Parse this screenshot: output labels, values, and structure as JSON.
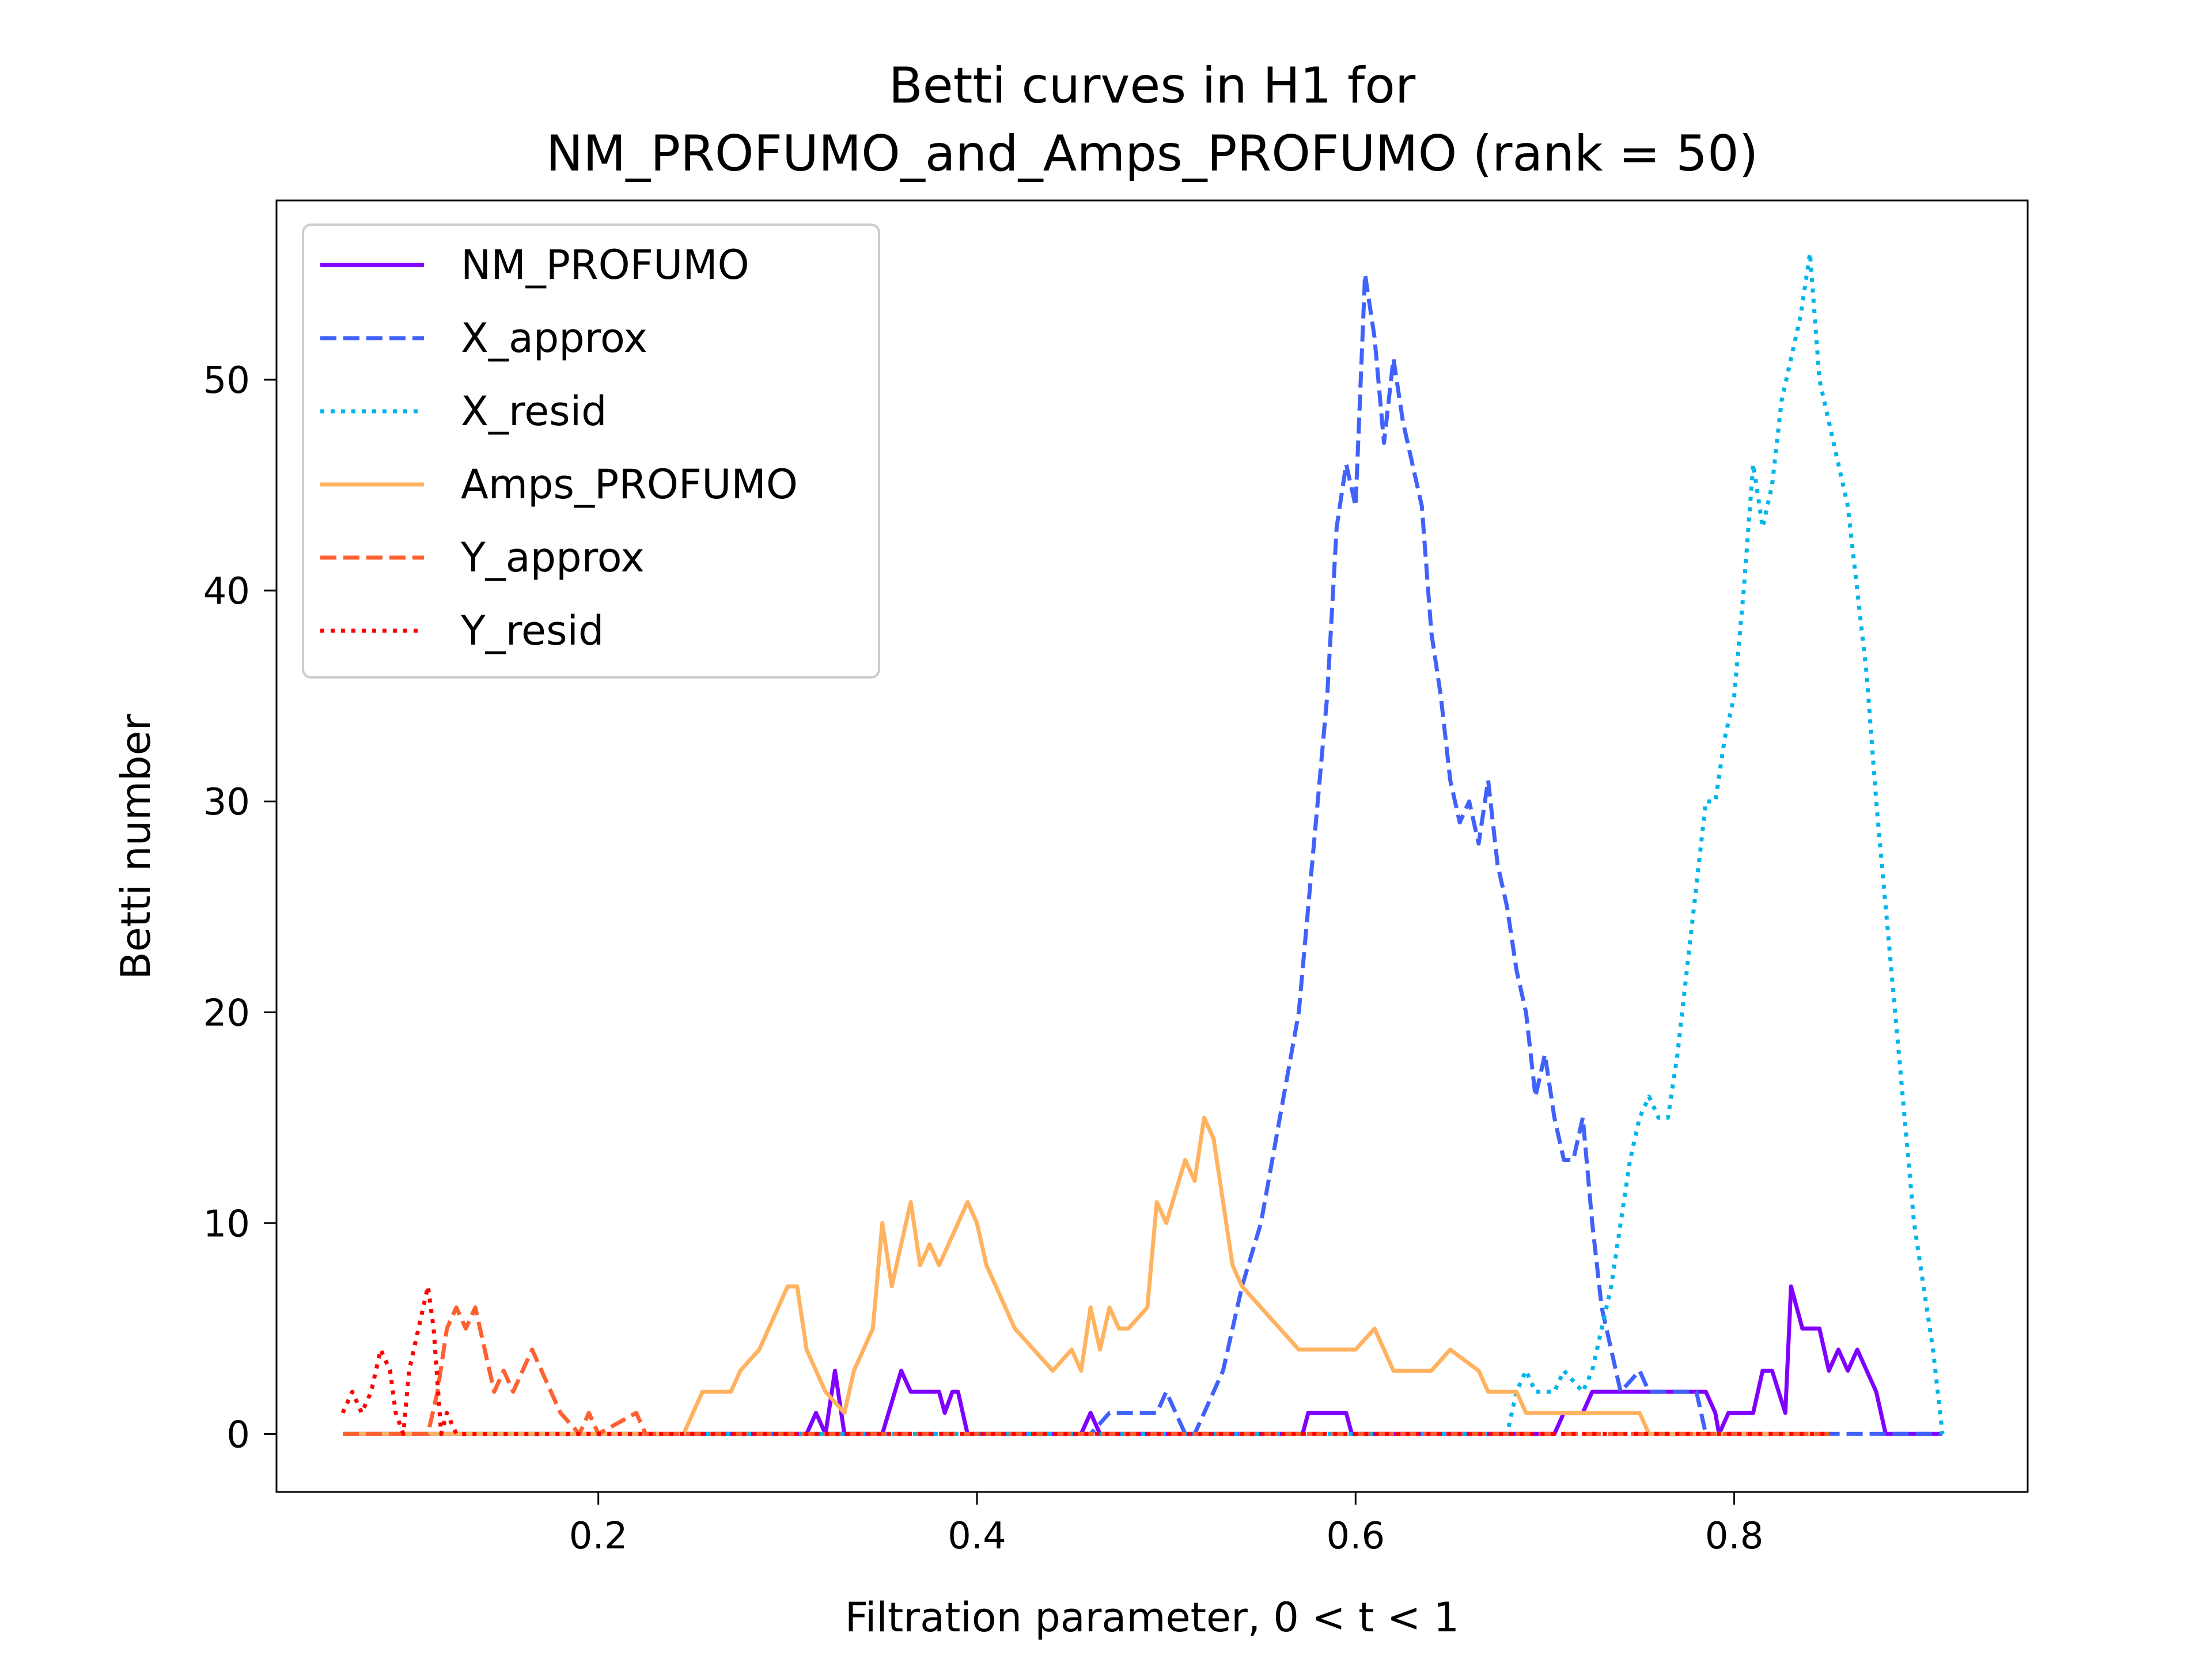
{
  "chart_data": {
    "type": "line",
    "title_line1": "Betti curves in H1 for",
    "title_line2": "NM_PROFUMO_and_Amps_PROFUMO (rank = 50)",
    "xlabel": "Filtration parameter, 0 < t < 1",
    "ylabel": "Betti number",
    "xlim": [
      0.03,
      0.955
    ],
    "ylim": [
      -2.75,
      58.5
    ],
    "x_ticks": [
      0.2,
      0.4,
      0.6,
      0.8
    ],
    "x_tick_labels": [
      "0.2",
      "0.4",
      "0.6",
      "0.8"
    ],
    "y_ticks": [
      0,
      10,
      20,
      30,
      40,
      50
    ],
    "y_tick_labels": [
      "0",
      "10",
      "20",
      "30",
      "40",
      "50"
    ],
    "grid": false,
    "legend_position": "upper-left",
    "series": [
      {
        "name": "NM_PROFUMO",
        "color": "#8000ff",
        "dash": "solid",
        "points": [
          [
            0.065,
            0
          ],
          [
            0.31,
            0
          ],
          [
            0.315,
            1
          ],
          [
            0.32,
            0
          ],
          [
            0.325,
            3
          ],
          [
            0.33,
            0
          ],
          [
            0.35,
            0
          ],
          [
            0.36,
            3
          ],
          [
            0.365,
            2
          ],
          [
            0.38,
            2
          ],
          [
            0.383,
            1
          ],
          [
            0.387,
            2
          ],
          [
            0.39,
            2
          ],
          [
            0.395,
            0
          ],
          [
            0.455,
            0
          ],
          [
            0.46,
            1
          ],
          [
            0.465,
            0
          ],
          [
            0.572,
            0
          ],
          [
            0.575,
            1
          ],
          [
            0.595,
            1
          ],
          [
            0.598,
            0
          ],
          [
            0.705,
            0
          ],
          [
            0.71,
            1
          ],
          [
            0.72,
            1
          ],
          [
            0.725,
            2
          ],
          [
            0.74,
            2
          ],
          [
            0.745,
            2
          ],
          [
            0.785,
            2
          ],
          [
            0.79,
            1
          ],
          [
            0.792,
            0
          ],
          [
            0.797,
            1
          ],
          [
            0.81,
            1
          ],
          [
            0.815,
            3
          ],
          [
            0.82,
            3
          ],
          [
            0.827,
            1
          ],
          [
            0.83,
            7
          ],
          [
            0.836,
            5
          ],
          [
            0.845,
            5
          ],
          [
            0.85,
            3
          ],
          [
            0.855,
            4
          ],
          [
            0.86,
            3
          ],
          [
            0.865,
            4
          ],
          [
            0.87,
            3
          ],
          [
            0.875,
            2
          ],
          [
            0.88,
            0
          ],
          [
            0.91,
            0
          ]
        ]
      },
      {
        "name": "X_approx",
        "color": "#4062fa",
        "dash": "dashed",
        "points": [
          [
            0.065,
            0
          ],
          [
            0.46,
            0
          ],
          [
            0.47,
            1
          ],
          [
            0.495,
            1
          ],
          [
            0.5,
            2
          ],
          [
            0.505,
            1
          ],
          [
            0.51,
            0
          ],
          [
            0.515,
            0
          ],
          [
            0.525,
            2
          ],
          [
            0.53,
            3
          ],
          [
            0.535,
            5
          ],
          [
            0.54,
            7
          ],
          [
            0.55,
            10
          ],
          [
            0.56,
            15
          ],
          [
            0.57,
            20
          ],
          [
            0.575,
            25
          ],
          [
            0.58,
            30
          ],
          [
            0.585,
            35
          ],
          [
            0.59,
            43
          ],
          [
            0.595,
            46
          ],
          [
            0.6,
            44
          ],
          [
            0.605,
            55
          ],
          [
            0.61,
            52
          ],
          [
            0.615,
            47
          ],
          [
            0.62,
            51
          ],
          [
            0.625,
            48
          ],
          [
            0.63,
            46
          ],
          [
            0.635,
            44
          ],
          [
            0.64,
            38
          ],
          [
            0.645,
            35
          ],
          [
            0.65,
            31
          ],
          [
            0.655,
            29
          ],
          [
            0.66,
            30
          ],
          [
            0.665,
            28
          ],
          [
            0.67,
            31
          ],
          [
            0.675,
            27
          ],
          [
            0.68,
            25
          ],
          [
            0.685,
            22
          ],
          [
            0.69,
            20
          ],
          [
            0.695,
            16
          ],
          [
            0.7,
            18
          ],
          [
            0.705,
            15
          ],
          [
            0.71,
            13
          ],
          [
            0.715,
            13
          ],
          [
            0.72,
            15
          ],
          [
            0.725,
            10
          ],
          [
            0.73,
            6
          ],
          [
            0.735,
            4
          ],
          [
            0.74,
            2
          ],
          [
            0.75,
            3
          ],
          [
            0.755,
            2
          ],
          [
            0.78,
            2
          ],
          [
            0.785,
            0
          ],
          [
            0.91,
            0
          ]
        ]
      },
      {
        "name": "X_resid",
        "color": "#00b5eb",
        "dash": "dotted",
        "points": [
          [
            0.065,
            0
          ],
          [
            0.68,
            0
          ],
          [
            0.685,
            2
          ],
          [
            0.69,
            3
          ],
          [
            0.695,
            2
          ],
          [
            0.705,
            2
          ],
          [
            0.71,
            3
          ],
          [
            0.72,
            2
          ],
          [
            0.725,
            3
          ],
          [
            0.73,
            5
          ],
          [
            0.735,
            7
          ],
          [
            0.74,
            10
          ],
          [
            0.745,
            13
          ],
          [
            0.75,
            15
          ],
          [
            0.755,
            16
          ],
          [
            0.76,
            15
          ],
          [
            0.765,
            15
          ],
          [
            0.77,
            18
          ],
          [
            0.775,
            22
          ],
          [
            0.78,
            26
          ],
          [
            0.785,
            30
          ],
          [
            0.79,
            30
          ],
          [
            0.795,
            33
          ],
          [
            0.8,
            35
          ],
          [
            0.805,
            40
          ],
          [
            0.81,
            46
          ],
          [
            0.815,
            43
          ],
          [
            0.82,
            45
          ],
          [
            0.825,
            49
          ],
          [
            0.83,
            51
          ],
          [
            0.835,
            53
          ],
          [
            0.84,
            56
          ],
          [
            0.845,
            50
          ],
          [
            0.85,
            48
          ],
          [
            0.855,
            46
          ],
          [
            0.86,
            44
          ],
          [
            0.865,
            40
          ],
          [
            0.87,
            36
          ],
          [
            0.875,
            30
          ],
          [
            0.88,
            25
          ],
          [
            0.885,
            20
          ],
          [
            0.89,
            15
          ],
          [
            0.895,
            10
          ],
          [
            0.9,
            7
          ],
          [
            0.905,
            4
          ],
          [
            0.91,
            0
          ]
        ]
      },
      {
        "name": "Amps_PROFUMO",
        "color": "#ffb360",
        "dash": "solid",
        "points": [
          [
            0.065,
            0
          ],
          [
            0.245,
            0
          ],
          [
            0.25,
            1
          ],
          [
            0.255,
            2
          ],
          [
            0.27,
            2
          ],
          [
            0.275,
            3
          ],
          [
            0.285,
            4
          ],
          [
            0.29,
            5
          ],
          [
            0.3,
            7
          ],
          [
            0.305,
            7
          ],
          [
            0.31,
            4
          ],
          [
            0.315,
            3
          ],
          [
            0.32,
            2
          ],
          [
            0.33,
            1
          ],
          [
            0.335,
            3
          ],
          [
            0.34,
            4
          ],
          [
            0.345,
            5
          ],
          [
            0.35,
            10
          ],
          [
            0.355,
            7
          ],
          [
            0.36,
            9
          ],
          [
            0.365,
            11
          ],
          [
            0.37,
            8
          ],
          [
            0.375,
            9
          ],
          [
            0.38,
            8
          ],
          [
            0.385,
            9
          ],
          [
            0.39,
            10
          ],
          [
            0.395,
            11
          ],
          [
            0.4,
            10
          ],
          [
            0.405,
            8
          ],
          [
            0.41,
            7
          ],
          [
            0.415,
            6
          ],
          [
            0.42,
            5
          ],
          [
            0.43,
            4
          ],
          [
            0.44,
            3
          ],
          [
            0.45,
            4
          ],
          [
            0.455,
            3
          ],
          [
            0.46,
            6
          ],
          [
            0.465,
            4
          ],
          [
            0.47,
            6
          ],
          [
            0.475,
            5
          ],
          [
            0.48,
            5
          ],
          [
            0.49,
            6
          ],
          [
            0.495,
            11
          ],
          [
            0.5,
            10
          ],
          [
            0.51,
            13
          ],
          [
            0.515,
            12
          ],
          [
            0.52,
            15
          ],
          [
            0.525,
            14
          ],
          [
            0.53,
            11
          ],
          [
            0.535,
            8
          ],
          [
            0.54,
            7
          ],
          [
            0.55,
            6
          ],
          [
            0.56,
            5
          ],
          [
            0.57,
            4
          ],
          [
            0.6,
            4
          ],
          [
            0.61,
            5
          ],
          [
            0.62,
            3
          ],
          [
            0.64,
            3
          ],
          [
            0.65,
            4
          ],
          [
            0.665,
            3
          ],
          [
            0.67,
            2
          ],
          [
            0.685,
            2
          ],
          [
            0.69,
            1
          ],
          [
            0.7,
            1
          ],
          [
            0.75,
            1
          ],
          [
            0.755,
            0
          ],
          [
            0.85,
            0
          ]
        ]
      },
      {
        "name": "Y_approx",
        "color": "#ff6030",
        "dash": "dashed",
        "points": [
          [
            0.065,
            0
          ],
          [
            0.11,
            0
          ],
          [
            0.115,
            2
          ],
          [
            0.12,
            5
          ],
          [
            0.125,
            6
          ],
          [
            0.13,
            5
          ],
          [
            0.135,
            6
          ],
          [
            0.14,
            4
          ],
          [
            0.145,
            2
          ],
          [
            0.15,
            3
          ],
          [
            0.155,
            2
          ],
          [
            0.16,
            3
          ],
          [
            0.165,
            4
          ],
          [
            0.17,
            3
          ],
          [
            0.175,
            2
          ],
          [
            0.18,
            1
          ],
          [
            0.19,
            0
          ],
          [
            0.195,
            1
          ],
          [
            0.2,
            0
          ],
          [
            0.22,
            1
          ],
          [
            0.225,
            0
          ],
          [
            0.85,
            0
          ]
        ]
      },
      {
        "name": "Y_resid",
        "color": "#ff0000",
        "dash": "dotted",
        "points": [
          [
            0.065,
            1
          ],
          [
            0.07,
            2
          ],
          [
            0.075,
            1
          ],
          [
            0.08,
            2
          ],
          [
            0.085,
            4
          ],
          [
            0.09,
            3
          ],
          [
            0.093,
            1
          ],
          [
            0.097,
            0
          ],
          [
            0.1,
            3
          ],
          [
            0.105,
            5
          ],
          [
            0.11,
            7
          ],
          [
            0.113,
            5
          ],
          [
            0.117,
            0
          ],
          [
            0.12,
            1
          ],
          [
            0.125,
            0
          ],
          [
            0.85,
            0
          ]
        ]
      }
    ]
  }
}
